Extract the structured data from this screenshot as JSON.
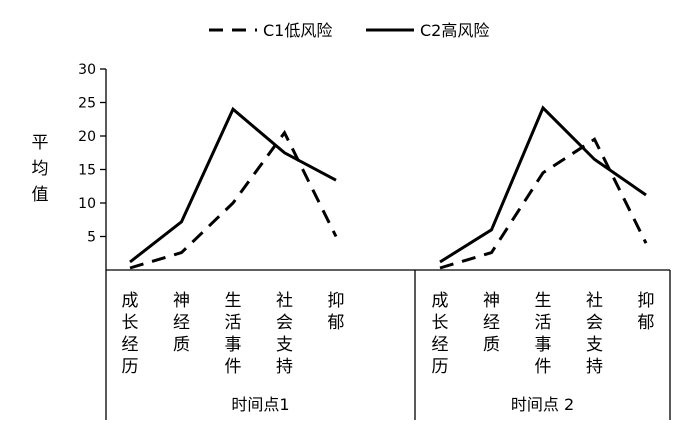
{
  "chart_data": {
    "type": "line",
    "title": "",
    "ylabel": "平均值",
    "ylim": [
      0,
      30
    ],
    "yticks": [
      5,
      10,
      15,
      20,
      25,
      30
    ],
    "grid": false,
    "legend_position": "top",
    "categories": [
      "成长经历",
      "神经质",
      "生活事件",
      "社会支持",
      "抑郁"
    ],
    "groups": [
      {
        "label": "时间点1"
      },
      {
        "label": "时间点 2"
      }
    ],
    "series": [
      {
        "name": "C1低风险",
        "style": "dashed",
        "color": "#000000",
        "values": [
          [
            0.3,
            2.6,
            10,
            20.5,
            5
          ],
          [
            0.3,
            2.6,
            14.5,
            19.5,
            4
          ]
        ]
      },
      {
        "name": "C2高风险",
        "style": "solid",
        "color": "#000000",
        "values": [
          [
            1.2,
            7.2,
            24,
            17.5,
            13.4
          ],
          [
            1.2,
            6,
            24.2,
            16.5,
            11.2
          ]
        ]
      }
    ]
  }
}
